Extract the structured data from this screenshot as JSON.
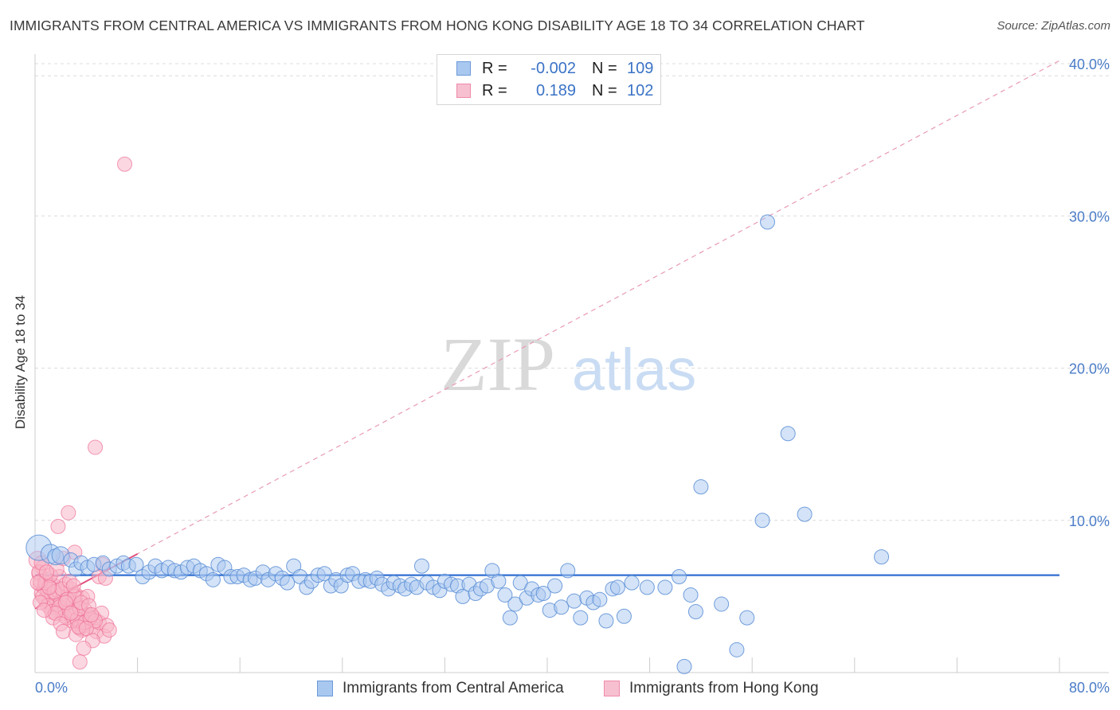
{
  "title": "IMMIGRANTS FROM CENTRAL AMERICA VS IMMIGRANTS FROM HONG KONG DISABILITY AGE 18 TO 34 CORRELATION CHART",
  "source": "Source: ZipAtlas.com",
  "watermark": {
    "zip": "ZIP",
    "atlas": "atlas"
  },
  "legend": {
    "r_label": "R =",
    "n_label": "N =",
    "series_a": {
      "r": "-0.002",
      "n": "109"
    },
    "series_b": {
      "r": "0.189",
      "n": "102"
    }
  },
  "bottom_legend": {
    "series_a": "Immigrants from Central America",
    "series_b": "Immigrants from Hong Kong"
  },
  "colors": {
    "blue_fill": "#a9c8f0",
    "blue_stroke": "#5b8ed6",
    "blue_line": "#2f6fd1",
    "pink_fill": "#f7b6c9",
    "pink_stroke": "#ee6f96",
    "pink_line": "#e0507e",
    "tick_label": "#4a7cc7"
  },
  "chart_data": {
    "type": "scatter",
    "title": "IMMIGRANTS FROM CENTRAL AMERICA VS IMMIGRANTS FROM HONG KONG DISABILITY AGE 18 TO 34 CORRELATION CHART",
    "xlabel": "",
    "ylabel": "Disability Age 18 to 34",
    "xlim": [
      0,
      80
    ],
    "ylim": [
      0,
      40
    ],
    "x_tick_labels": [
      "0.0%",
      "80.0%"
    ],
    "y_ticks": [
      10,
      20,
      30,
      40
    ],
    "y_tick_labels": [
      "10.0%",
      "20.0%",
      "30.0%",
      "40.0%"
    ],
    "series": [
      {
        "name": "Immigrants from Central America",
        "r": -0.002,
        "n": 109,
        "trend": {
          "x": [
            0,
            80
          ],
          "y": [
            6.4,
            6.4
          ],
          "style": "solid"
        },
        "points": [
          [
            0.3,
            8.2,
            16
          ],
          [
            1.2,
            7.8,
            12
          ],
          [
            1.6,
            7.6,
            10
          ],
          [
            2.0,
            7.7,
            11
          ],
          [
            2.8,
            7.4,
            9
          ],
          [
            3.2,
            6.8,
            9
          ],
          [
            3.6,
            7.2,
            9
          ],
          [
            4.1,
            6.9,
            9
          ],
          [
            4.6,
            7.1,
            9
          ],
          [
            5.3,
            7.2,
            9
          ],
          [
            5.8,
            6.8,
            9
          ],
          [
            6.4,
            7.0,
            9
          ],
          [
            6.9,
            7.2,
            9
          ],
          [
            7.3,
            7.0,
            9
          ],
          [
            7.9,
            7.1,
            9
          ],
          [
            8.4,
            6.3,
            9
          ],
          [
            8.9,
            6.6,
            9
          ],
          [
            9.4,
            7.0,
            9
          ],
          [
            9.9,
            6.7,
            9
          ],
          [
            10.4,
            6.9,
            9
          ],
          [
            10.9,
            6.7,
            9
          ],
          [
            11.4,
            6.6,
            9
          ],
          [
            11.9,
            6.9,
            9
          ],
          [
            12.4,
            7.0,
            9
          ],
          [
            12.9,
            6.7,
            9
          ],
          [
            13.4,
            6.5,
            9
          ],
          [
            13.9,
            6.1,
            9
          ],
          [
            14.3,
            7.1,
            9
          ],
          [
            14.8,
            6.9,
            9
          ],
          [
            15.3,
            6.3,
            9
          ],
          [
            15.8,
            6.3,
            9
          ],
          [
            16.3,
            6.4,
            9
          ],
          [
            16.8,
            6.1,
            9
          ],
          [
            17.2,
            6.2,
            9
          ],
          [
            17.8,
            6.6,
            9
          ],
          [
            18.2,
            6.1,
            9
          ],
          [
            18.8,
            6.5,
            9
          ],
          [
            19.3,
            6.2,
            9
          ],
          [
            19.7,
            5.9,
            9
          ],
          [
            20.2,
            7.0,
            9
          ],
          [
            20.7,
            6.3,
            9
          ],
          [
            21.2,
            5.6,
            9
          ],
          [
            21.6,
            6.0,
            9
          ],
          [
            22.1,
            6.4,
            9
          ],
          [
            22.6,
            6.5,
            9
          ],
          [
            23.1,
            5.7,
            9
          ],
          [
            23.5,
            6.1,
            9
          ],
          [
            23.9,
            5.7,
            9
          ],
          [
            24.4,
            6.4,
            9
          ],
          [
            24.8,
            6.5,
            9
          ],
          [
            25.3,
            6.0,
            9
          ],
          [
            25.8,
            6.1,
            9
          ],
          [
            26.2,
            6.0,
            9
          ],
          [
            26.7,
            6.2,
            9
          ],
          [
            27.1,
            5.8,
            9
          ],
          [
            27.6,
            5.5,
            9
          ],
          [
            28.0,
            5.9,
            9
          ],
          [
            28.5,
            5.7,
            9
          ],
          [
            28.9,
            5.5,
            9
          ],
          [
            29.4,
            5.8,
            9
          ],
          [
            29.8,
            5.6,
            9
          ],
          [
            30.2,
            7.0,
            9
          ],
          [
            30.6,
            5.9,
            9
          ],
          [
            31.1,
            5.6,
            9
          ],
          [
            31.6,
            5.4,
            9
          ],
          [
            32.0,
            6.0,
            9
          ],
          [
            32.5,
            5.8,
            9
          ],
          [
            33.0,
            5.7,
            9
          ],
          [
            33.4,
            5.0,
            9
          ],
          [
            33.9,
            5.8,
            9
          ],
          [
            34.4,
            5.2,
            9
          ],
          [
            34.8,
            5.5,
            9
          ],
          [
            35.3,
            5.7,
            9
          ],
          [
            35.7,
            6.7,
            9
          ],
          [
            36.2,
            6.0,
            9
          ],
          [
            36.7,
            5.1,
            9
          ],
          [
            37.1,
            3.6,
            9
          ],
          [
            37.5,
            4.5,
            9
          ],
          [
            37.9,
            5.9,
            9
          ],
          [
            38.4,
            4.9,
            9
          ],
          [
            38.8,
            5.5,
            9
          ],
          [
            39.3,
            5.1,
            9
          ],
          [
            39.7,
            5.2,
            9
          ],
          [
            40.2,
            4.1,
            9
          ],
          [
            40.6,
            5.7,
            9
          ],
          [
            41.1,
            4.3,
            9
          ],
          [
            41.6,
            6.7,
            9
          ],
          [
            42.1,
            4.7,
            9
          ],
          [
            42.6,
            3.6,
            9
          ],
          [
            43.1,
            4.9,
            9
          ],
          [
            43.6,
            4.6,
            9
          ],
          [
            44.1,
            4.8,
            9
          ],
          [
            44.6,
            3.4,
            9
          ],
          [
            45.1,
            5.5,
            9
          ],
          [
            45.5,
            5.6,
            9
          ],
          [
            46.0,
            3.7,
            9
          ],
          [
            46.6,
            5.9,
            9
          ],
          [
            47.8,
            5.6,
            9
          ],
          [
            49.2,
            5.6,
            9
          ],
          [
            50.3,
            6.3,
            9
          ],
          [
            50.7,
            0.4,
            9
          ],
          [
            51.2,
            5.1,
            9
          ],
          [
            51.6,
            4.0,
            9
          ],
          [
            52.0,
            12.2,
            9
          ],
          [
            53.6,
            4.5,
            9
          ],
          [
            54.8,
            1.5,
            9
          ],
          [
            55.6,
            3.6,
            9
          ],
          [
            56.8,
            10.0,
            9
          ],
          [
            57.2,
            29.6,
            9
          ],
          [
            58.8,
            15.7,
            9
          ],
          [
            60.1,
            10.4,
            9
          ],
          [
            66.1,
            7.6,
            9
          ]
        ]
      },
      {
        "name": "Immigrants from Hong Kong",
        "r": 0.189,
        "n": 102,
        "trend": {
          "x": [
            0,
            8
          ],
          "y": [
            4.2,
            7.8
          ],
          "style": "solid"
        },
        "trend_extended": {
          "x": [
            0,
            80
          ],
          "y": [
            4.2,
            40.2
          ],
          "style": "dashed"
        },
        "points": [
          [
            0.2,
            7.4,
            11
          ],
          [
            0.3,
            6.5,
            9
          ],
          [
            0.4,
            5.8,
            9
          ],
          [
            0.5,
            5.2,
            9
          ],
          [
            0.6,
            6.9,
            9
          ],
          [
            0.7,
            5.6,
            9
          ],
          [
            0.8,
            4.8,
            9
          ],
          [
            0.9,
            6.1,
            9
          ],
          [
            1.0,
            5.4,
            9
          ],
          [
            1.1,
            4.6,
            9
          ],
          [
            1.2,
            5.9,
            9
          ],
          [
            1.3,
            5.1,
            9
          ],
          [
            1.4,
            4.3,
            9
          ],
          [
            1.5,
            5.7,
            9
          ],
          [
            1.6,
            4.9,
            9
          ],
          [
            1.7,
            4.1,
            9
          ],
          [
            1.8,
            5.4,
            9
          ],
          [
            1.9,
            6.3,
            9
          ],
          [
            2.0,
            4.6,
            9
          ],
          [
            2.1,
            3.9,
            9
          ],
          [
            2.2,
            5.2,
            9
          ],
          [
            2.3,
            4.4,
            9
          ],
          [
            2.4,
            5.8,
            9
          ],
          [
            2.5,
            3.6,
            9
          ],
          [
            2.6,
            4.9,
            9
          ],
          [
            2.7,
            4.1,
            9
          ],
          [
            2.8,
            5.5,
            9
          ],
          [
            2.9,
            3.4,
            9
          ],
          [
            3.0,
            4.6,
            9
          ],
          [
            3.1,
            3.8,
            9
          ],
          [
            3.2,
            5.1,
            9
          ],
          [
            3.3,
            3.2,
            9
          ],
          [
            3.4,
            4.4,
            9
          ],
          [
            3.5,
            2.9,
            9
          ],
          [
            3.6,
            3.7,
            9
          ],
          [
            3.7,
            4.9,
            9
          ],
          [
            3.8,
            3.1,
            9
          ],
          [
            3.9,
            4.1,
            9
          ],
          [
            4.0,
            3.4,
            9
          ],
          [
            4.2,
            3.8,
            9
          ],
          [
            4.4,
            3.0,
            9
          ],
          [
            4.6,
            3.6,
            9
          ],
          [
            4.8,
            2.7,
            9
          ],
          [
            5.0,
            3.3,
            9
          ],
          [
            5.2,
            3.9,
            9
          ],
          [
            5.4,
            2.4,
            9
          ],
          [
            5.6,
            3.1,
            9
          ],
          [
            5.8,
            2.8,
            9
          ],
          [
            1.8,
            9.6,
            9
          ],
          [
            2.6,
            10.5,
            9
          ],
          [
            4.7,
            14.8,
            9
          ],
          [
            7.0,
            33.4,
            9
          ],
          [
            0.3,
            6.6,
            9
          ],
          [
            0.4,
            6.0,
            9
          ],
          [
            0.6,
            5.0,
            9
          ],
          [
            0.8,
            5.9,
            9
          ],
          [
            1.0,
            4.4,
            9
          ],
          [
            1.2,
            6.4,
            9
          ],
          [
            1.3,
            4.0,
            9
          ],
          [
            1.5,
            5.3,
            9
          ],
          [
            1.7,
            6.8,
            9
          ],
          [
            1.9,
            4.3,
            9
          ],
          [
            2.1,
            5.5,
            9
          ],
          [
            2.3,
            3.7,
            9
          ],
          [
            2.5,
            4.8,
            9
          ],
          [
            2.7,
            6.0,
            9
          ],
          [
            2.9,
            4.0,
            9
          ],
          [
            3.1,
            5.0,
            9
          ],
          [
            3.3,
            3.5,
            9
          ],
          [
            3.5,
            4.2,
            9
          ],
          [
            3.7,
            2.8,
            9
          ],
          [
            3.9,
            3.3,
            9
          ],
          [
            4.1,
            5.0,
            9
          ],
          [
            4.3,
            3.6,
            9
          ],
          [
            4.5,
            2.1,
            9
          ],
          [
            4.7,
            3.4,
            9
          ],
          [
            5.0,
            6.3,
            9
          ],
          [
            5.3,
            7.1,
            9
          ],
          [
            5.5,
            6.2,
            9
          ],
          [
            0.5,
            7.2,
            9
          ],
          [
            0.9,
            6.6,
            9
          ],
          [
            1.1,
            5.6,
            9
          ],
          [
            1.4,
            3.6,
            9
          ],
          [
            1.6,
            3.9,
            9
          ],
          [
            2.0,
            3.2,
            9
          ],
          [
            2.2,
            2.7,
            9
          ],
          [
            2.4,
            4.6,
            9
          ],
          [
            2.8,
            3.9,
            9
          ],
          [
            3.0,
            5.7,
            9
          ],
          [
            3.2,
            2.5,
            9
          ],
          [
            3.4,
            3.0,
            9
          ],
          [
            3.6,
            4.6,
            9
          ],
          [
            3.8,
            1.6,
            9
          ],
          [
            4.0,
            2.9,
            9
          ],
          [
            4.2,
            4.4,
            9
          ],
          [
            4.4,
            3.8,
            9
          ],
          [
            3.1,
            7.9,
            9
          ],
          [
            2.2,
            7.5,
            9
          ],
          [
            3.5,
            0.7,
            9
          ],
          [
            0.2,
            5.9,
            9
          ],
          [
            0.4,
            4.6,
            9
          ],
          [
            0.7,
            4.1,
            9
          ]
        ]
      }
    ]
  }
}
